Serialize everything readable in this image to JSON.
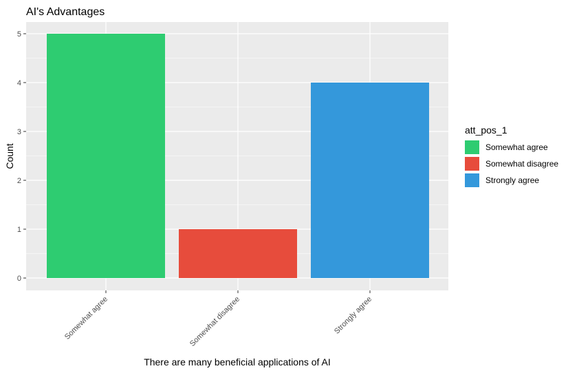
{
  "chart_data": {
    "type": "bar",
    "title": "AI's Advantages",
    "xlabel": "There are many beneficial applications of AI",
    "ylabel": "Count",
    "categories": [
      "Somewhat agree",
      "Somewhat disagree",
      "Strongly agree"
    ],
    "values": [
      5,
      1,
      4
    ],
    "colors": [
      "#2ecc71",
      "#e74c3c",
      "#3498db"
    ],
    "ylim": [
      0,
      5
    ],
    "yticks": [
      0,
      1,
      2,
      3,
      4,
      5
    ],
    "grid": true,
    "panel_background": "#ebebeb",
    "legend": {
      "title": "att_pos_1",
      "placement": "right",
      "entries": [
        "Somewhat agree",
        "Somewhat disagree",
        "Strongly agree"
      ]
    }
  }
}
